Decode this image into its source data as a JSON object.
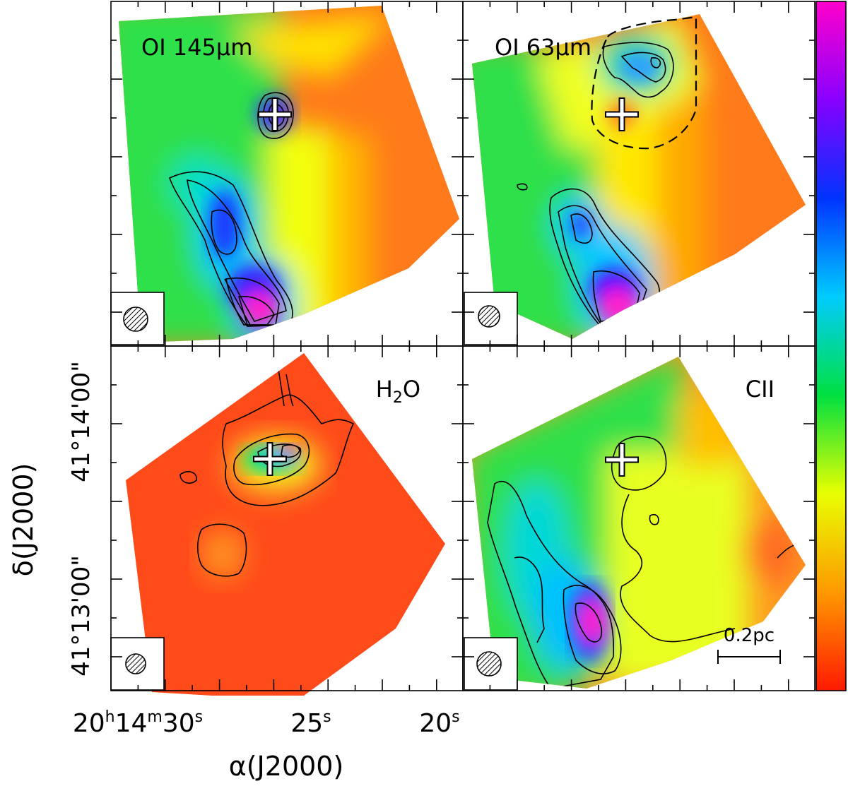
{
  "chart_data": {
    "type": "heatmap",
    "description_panels": 4,
    "x_axis": {
      "label": "α(J2000)",
      "ticks": [
        {
          "value": "20h14m30s",
          "parts": {
            "h": "20",
            "m": "14",
            "s": "30"
          }
        },
        {
          "value": "25s",
          "parts": {
            "s": "25"
          }
        },
        {
          "value": "20s",
          "parts": {
            "s": "20"
          }
        }
      ]
    },
    "y_axis": {
      "label": "δ(J2000)",
      "ticks": [
        "41°13'00\"",
        "41°14'00\""
      ]
    },
    "colorbar": {
      "colormap": "rainbow",
      "colors": [
        "#ff00cc",
        "#8800ff",
        "#0033ff",
        "#00ccff",
        "#00e040",
        "#e8ff00",
        "#ff9900",
        "#ff1a00"
      ]
    },
    "panels": [
      {
        "name": "oi-145",
        "title_text": "OI 145",
        "title_unit": "μm",
        "position": "top-left"
      },
      {
        "name": "oi-63",
        "title_text": "OI 63",
        "title_unit": "μm",
        "position": "top-right"
      },
      {
        "name": "h2o",
        "title_text": "H",
        "title_sub": "2",
        "title_tail": "O",
        "position": "bottom-left"
      },
      {
        "name": "cii",
        "title_text": "CII",
        "position": "bottom-right"
      }
    ],
    "scale_bar": {
      "label": "0.2pc",
      "panel": "cii"
    }
  }
}
